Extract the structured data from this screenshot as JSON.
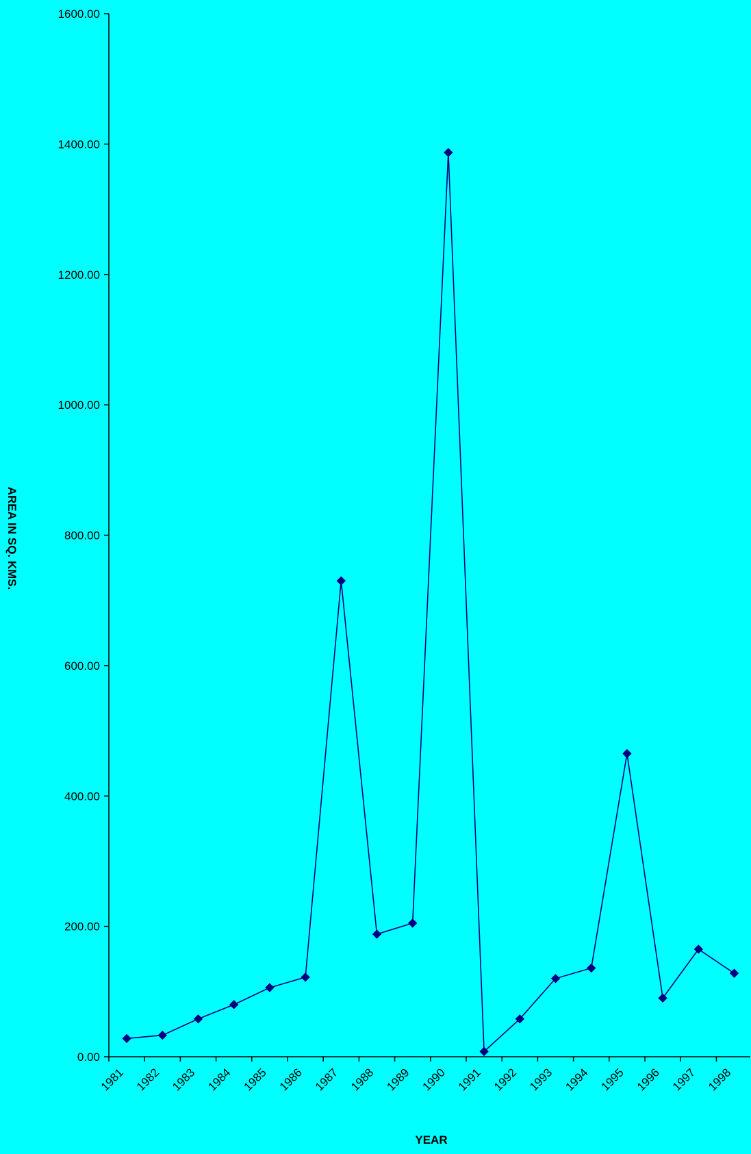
{
  "chart_data": {
    "type": "line",
    "title": "",
    "xlabel": "YEAR",
    "ylabel": "AREA IN SQ. KMS.",
    "ylim": [
      0,
      1600
    ],
    "yticks": [
      "0.00",
      "200.00",
      "400.00",
      "600.00",
      "800.00",
      "1000.00",
      "1200.00",
      "1400.00",
      "1600.00"
    ],
    "categories": [
      "1981",
      "1982",
      "1983",
      "1984",
      "1985",
      "1986",
      "1987",
      "1988",
      "1989",
      "1990",
      "1991",
      "1992",
      "1993",
      "1994",
      "1995",
      "1996",
      "1997",
      "1998"
    ],
    "series": [
      {
        "values": [
          28,
          33,
          58,
          80,
          106,
          122,
          730,
          188,
          205,
          1387,
          8,
          58,
          120,
          136,
          465,
          90,
          165,
          128
        ]
      }
    ],
    "grid": false,
    "legend": "none",
    "colors": {
      "background": "#00FFFF",
      "line": "#000080",
      "marker": "#000080",
      "axis": "#000000"
    }
  }
}
